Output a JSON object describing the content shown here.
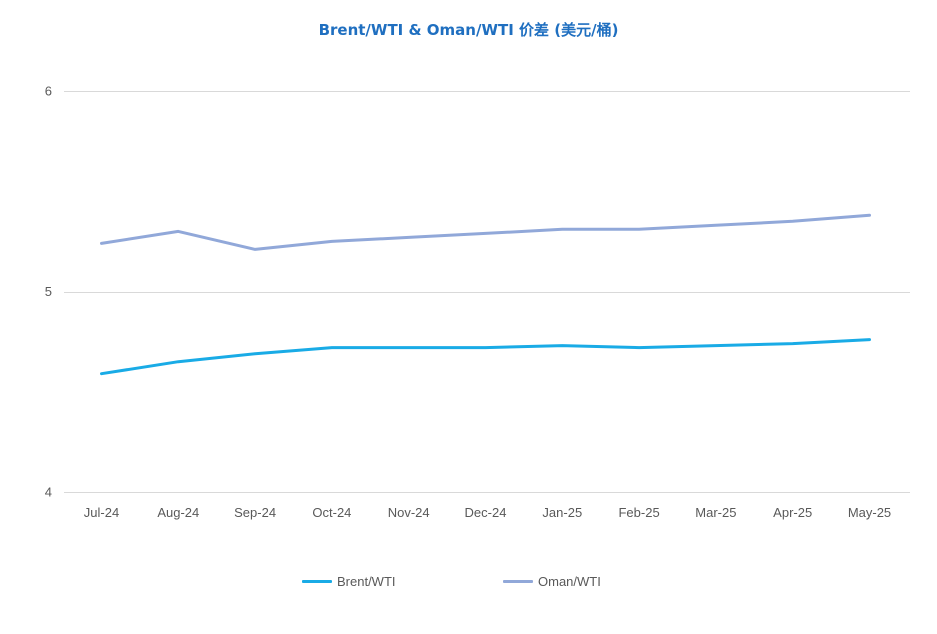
{
  "chart_data": {
    "type": "line",
    "title": "Brent/WTI & Oman/WTI 价差 (美元/桶)",
    "categories": [
      "Jul-24",
      "Aug-24",
      "Sep-24",
      "Oct-24",
      "Nov-24",
      "Dec-24",
      "Jan-25",
      "Feb-25",
      "Mar-25",
      "Apr-25",
      "May-25"
    ],
    "series": [
      {
        "name": "Brent/WTI",
        "color": "#19ABE6",
        "values": [
          4.59,
          4.65,
          4.69,
          4.72,
          4.72,
          4.72,
          4.73,
          4.72,
          4.73,
          4.74,
          4.76
        ]
      },
      {
        "name": "Oman/WTI",
        "color": "#91A8D9",
        "values": [
          5.24,
          5.3,
          5.21,
          5.25,
          5.27,
          5.29,
          5.31,
          5.31,
          5.33,
          5.35,
          5.38
        ]
      }
    ],
    "ylim": [
      4,
      6
    ],
    "yticks": [
      4,
      5,
      6
    ],
    "grid": "horizontal",
    "legend_position": "bottom",
    "xlabel": "",
    "ylabel": ""
  },
  "colors": {
    "title": "#1F6FC0",
    "gridline": "#D9D9D9",
    "tick_text": "#595959"
  }
}
